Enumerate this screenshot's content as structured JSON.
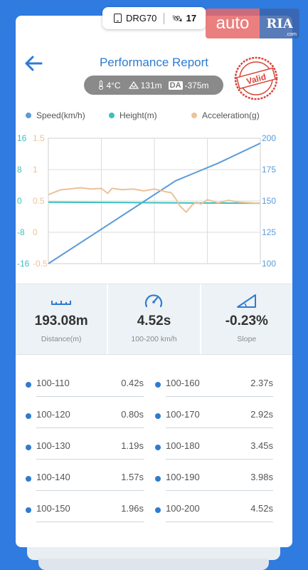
{
  "device": {
    "name": "DRG70",
    "satellites": "17"
  },
  "watermark": {
    "auto": "auto",
    "ria": "RIA",
    "com": ".com"
  },
  "header": {
    "title": "Performance Report",
    "stamp": "Valid",
    "back_icon": "arrow-left-icon"
  },
  "conditions": {
    "temperature": "4°C",
    "altitude": "131m",
    "da_label": "DA",
    "density_altitude": "-375m"
  },
  "colors": {
    "speed": "#5b9bd8",
    "height": "#3bbfbf",
    "acceleration": "#ecc297",
    "accent": "#2f7bd0",
    "stamp": "#d9453a"
  },
  "chart_data": {
    "type": "line",
    "legend": [
      "Speed(km/h)",
      "Height(m)",
      "Acceleration(g)"
    ],
    "legend_position": "top",
    "grid": true,
    "axes": {
      "height": {
        "ticks": [
          "16",
          "8",
          "0",
          "-8",
          "-16"
        ],
        "range": [
          -16,
          16
        ]
      },
      "acceleration": {
        "ticks": [
          "1.5",
          "1",
          "0.5",
          "0",
          "-0.5"
        ],
        "range": [
          -0.5,
          1.5
        ]
      },
      "speed": {
        "ticks": [
          "200",
          "175",
          "150",
          "125",
          "100"
        ],
        "range": [
          100,
          200
        ]
      }
    },
    "series": [
      {
        "name": "Speed(km/h)",
        "axis": "speed",
        "x": [
          0,
          0.2,
          0.4,
          0.6,
          0.7,
          0.8,
          1.0
        ],
        "values": [
          100,
          122,
          144,
          166,
          173,
          180,
          196
        ]
      },
      {
        "name": "Height(m)",
        "axis": "height",
        "x": [
          0,
          1.0
        ],
        "values": [
          -0.3,
          -0.6
        ]
      },
      {
        "name": "Acceleration(g)",
        "axis": "acceleration",
        "x": [
          0,
          0.03,
          0.06,
          0.1,
          0.15,
          0.2,
          0.25,
          0.28,
          0.3,
          0.35,
          0.4,
          0.45,
          0.5,
          0.55,
          0.58,
          0.6,
          0.62,
          0.65,
          0.68,
          0.7,
          0.72,
          0.75,
          0.8,
          0.85,
          0.9,
          0.95,
          1.0
        ],
        "values": [
          0.6,
          0.64,
          0.68,
          0.69,
          0.71,
          0.69,
          0.7,
          0.62,
          0.7,
          0.68,
          0.69,
          0.66,
          0.69,
          0.65,
          0.63,
          0.54,
          0.42,
          0.32,
          0.44,
          0.48,
          0.45,
          0.52,
          0.47,
          0.51,
          0.48,
          0.47,
          0.46
        ]
      }
    ]
  },
  "stats": [
    {
      "icon": "ruler-icon",
      "value": "193.08m",
      "label": "Distance(m)"
    },
    {
      "icon": "speedometer-icon",
      "value": "4.52s",
      "label": "100-200 km/h"
    },
    {
      "icon": "slope-icon",
      "value": "-0.23%",
      "label": "Slope"
    }
  ],
  "splits": [
    {
      "range": "100-110",
      "time": "0.42s"
    },
    {
      "range": "100-120",
      "time": "0.80s"
    },
    {
      "range": "100-130",
      "time": "1.19s"
    },
    {
      "range": "100-140",
      "time": "1.57s"
    },
    {
      "range": "100-150",
      "time": "1.96s"
    },
    {
      "range": "100-160",
      "time": "2.37s"
    },
    {
      "range": "100-170",
      "time": "2.92s"
    },
    {
      "range": "100-180",
      "time": "3.45s"
    },
    {
      "range": "100-190",
      "time": "3.98s"
    },
    {
      "range": "100-200",
      "time": "4.52s"
    }
  ]
}
